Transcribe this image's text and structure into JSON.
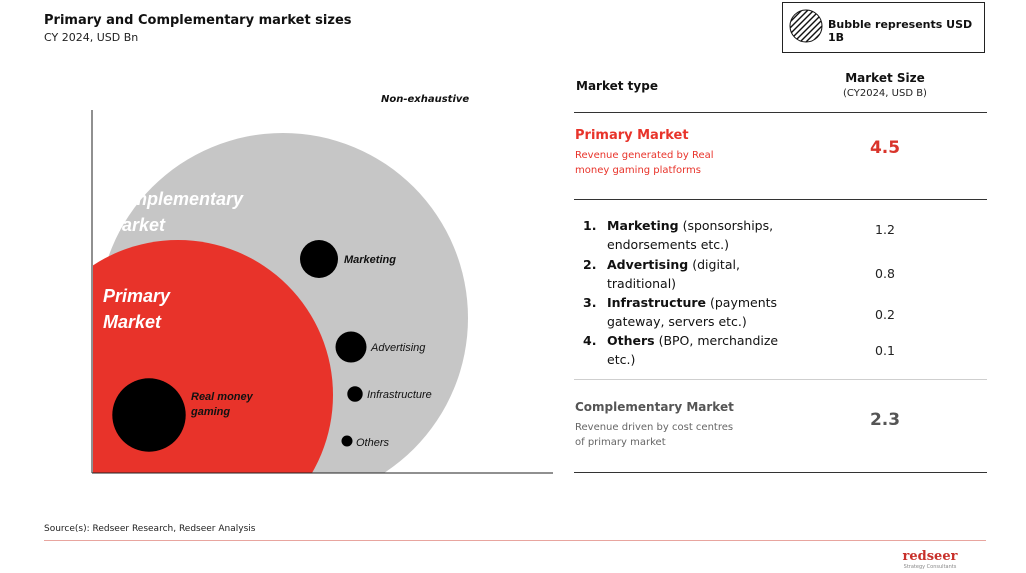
{
  "header": {
    "title": "Primary and Complementary market sizes",
    "subtitle": "CY 2024, USD Bn"
  },
  "legend": {
    "text": "Bubble represents USD 1B"
  },
  "note": "Non-exhaustive",
  "colors": {
    "primary": "#e8332a",
    "complementary": "#c6c6c6",
    "bubble": "#000000"
  },
  "chart_data": {
    "type": "bubble",
    "title": "Primary and Complementary market sizes",
    "subtitle": "CY 2024, USD Bn",
    "regions": [
      {
        "name": "Complementary Market",
        "line1": "Complementary",
        "line2": "Market",
        "value": 2.3
      },
      {
        "name": "Primary Market",
        "line1": "Primary",
        "line2": "Market",
        "value": 4.5
      }
    ],
    "bubbles": [
      {
        "label": "Real money gaming",
        "line1": "Real money",
        "line2": "gaming",
        "value": 4.5,
        "region": "Primary Market"
      },
      {
        "label": "Marketing",
        "value": 1.2,
        "region": "Complementary Market"
      },
      {
        "label": "Advertising",
        "value": 0.8,
        "region": "Complementary Market"
      },
      {
        "label": "Infrastructure",
        "value": 0.2,
        "region": "Complementary Market"
      },
      {
        "label": "Others",
        "value": 0.1,
        "region": "Complementary Market"
      }
    ],
    "legend": "top-right",
    "grid": false
  },
  "table": {
    "col_type": "Market type",
    "col_size": "Market Size",
    "col_size_unit": "(CY2024, USD B)",
    "primary": {
      "title": "Primary Market",
      "desc_line1": "Revenue generated by Real",
      "desc_line2": "money gaming platforms",
      "value": "4.5"
    },
    "items": [
      {
        "num": "1.",
        "bold": "Marketing",
        "rest1": " (sponsorships,",
        "rest2": "endorsements etc.)",
        "value": "1.2"
      },
      {
        "num": "2.",
        "bold": "Advertising",
        "rest1": " (digital,",
        "rest2": "traditional)",
        "value": "0.8"
      },
      {
        "num": "3.",
        "bold": "Infrastructure",
        "rest1": " (payments",
        "rest2": "gateway, servers etc.)",
        "value": "0.2"
      },
      {
        "num": "4.",
        "bold": "Others",
        "rest1": " (BPO, merchandize",
        "rest2": "etc.)",
        "value": "0.1"
      }
    ],
    "complementary": {
      "title": "Complementary Market",
      "desc_line1": "Revenue driven by cost centres",
      "desc_line2": "of primary market",
      "value": "2.3"
    }
  },
  "footer": {
    "source": "Source(s): Redseer Research, Redseer Analysis",
    "logo_name": "redseer",
    "logo_tag": "Strategy Consultants"
  }
}
